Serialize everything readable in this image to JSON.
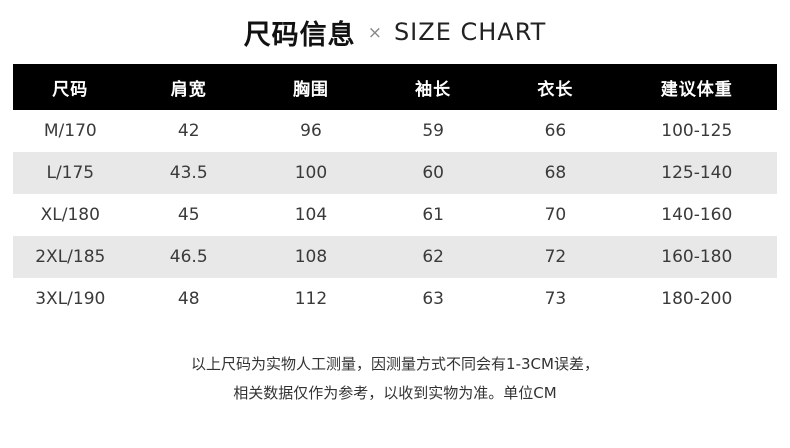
{
  "title": {
    "cn": "尺码信息",
    "divider": "×",
    "en": "SIZE CHART"
  },
  "chart_data": {
    "type": "table",
    "title": "尺码信息 × SIZE CHART",
    "columns": [
      "尺码",
      "肩宽",
      "胸围",
      "袖长",
      "衣长",
      "建议体重"
    ],
    "rows": [
      [
        "M/170",
        "42",
        "96",
        "59",
        "66",
        "100-125"
      ],
      [
        "L/175",
        "43.5",
        "100",
        "60",
        "68",
        "125-140"
      ],
      [
        "XL/180",
        "45",
        "104",
        "61",
        "70",
        "140-160"
      ],
      [
        "2XL/185",
        "46.5",
        "108",
        "62",
        "72",
        "160-180"
      ],
      [
        "3XL/190",
        "48",
        "112",
        "63",
        "73",
        "180-200"
      ]
    ],
    "unit": "CM",
    "layout_hints": {
      "header_style": "black background, white bold text",
      "row_striping": "rows 2 and 4 shaded light gray"
    }
  },
  "footer": {
    "line1": "以上尺码为实物人工测量，因测量方式不同会有1-3CM误差，",
    "line2": "相关数据仅作为参考，以收到实物为准。单位CM"
  },
  "colors": {
    "header_bg": "#000000",
    "header_text": "#ffffff",
    "row_alt_bg": "#e8e8e8",
    "body_text": "#3a3a3a"
  }
}
